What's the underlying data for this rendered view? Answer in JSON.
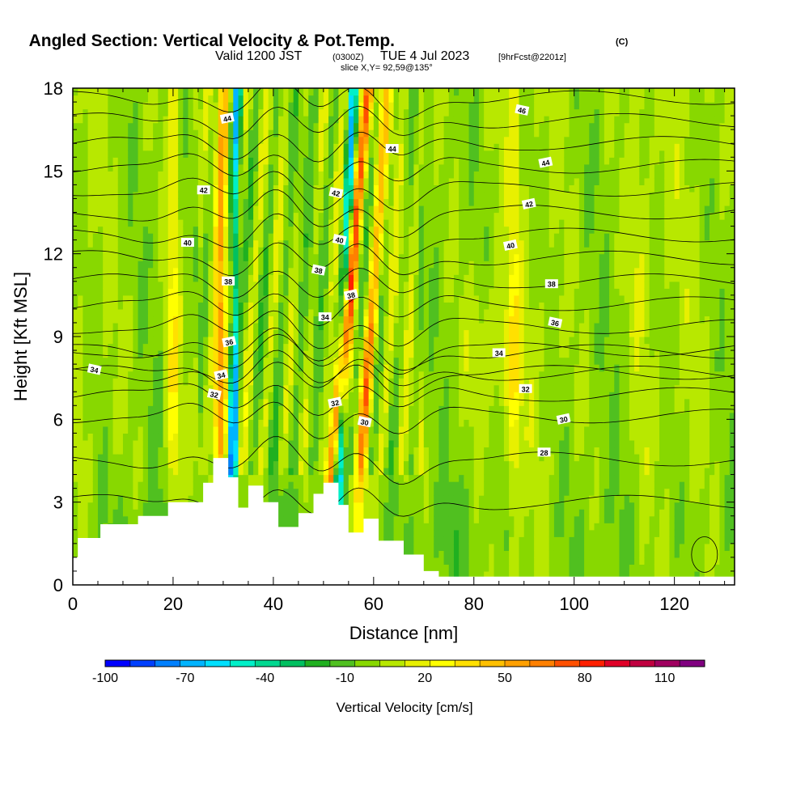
{
  "chart_data": {
    "type": "heatmap",
    "title": {
      "main": "Angled Section: Vertical Velocity & Pot.Temp.",
      "unit": "(C)",
      "valid_a": "Valid 1200 JST",
      "valid_b": "(0300Z)",
      "valid_c": "TUE 4 Jul 2023",
      "valid_d": "[9hrFcst@2201z]",
      "slice": "slice X,Y= 92,59@135°"
    },
    "xlabel": "Distance [nm]",
    "ylabel": "Height [Kft MSL]",
    "xlim": [
      0,
      132
    ],
    "ylim": [
      0,
      18
    ],
    "x_ticks": [
      "0",
      "20",
      "40",
      "60",
      "80",
      "100",
      "120"
    ],
    "y_ticks": [
      "0",
      "3",
      "6",
      "9",
      "12",
      "15",
      "18"
    ],
    "colorbar": {
      "label": "Vertical Velocity [cm/s]",
      "min": -100,
      "max": 125,
      "step": 10,
      "tick_labels": [
        "-100",
        "-70",
        "-40",
        "-10",
        "20",
        "50",
        "80",
        "110"
      ],
      "colors": [
        "#0000ff",
        "#0040ff",
        "#0080ff",
        "#00b4ff",
        "#00e0ff",
        "#00f0c8",
        "#00d890",
        "#00c060",
        "#20b020",
        "#50c020",
        "#88d800",
        "#b8e800",
        "#e8f000",
        "#ffff00",
        "#ffe000",
        "#ffc000",
        "#ffa000",
        "#ff8000",
        "#ff5000",
        "#ff2000",
        "#e00028",
        "#c00040",
        "#a00060",
        "#800080"
      ]
    },
    "updraft_columns": [
      {
        "x_bottom": 29,
        "x_top": 30,
        "peak": 70
      },
      {
        "x_bottom": 51,
        "x_top": 59,
        "peak": 110
      },
      {
        "x_bottom": 57,
        "x_top": 63,
        "peak": 55
      },
      {
        "x_bottom": 20,
        "x_top": 20,
        "peak": 35
      },
      {
        "x_bottom": 88,
        "x_top": 88,
        "peak": 25
      }
    ],
    "downdraft_columns": [
      {
        "x_bottom": 31,
        "x_top": 32,
        "peak": -95
      },
      {
        "x_bottom": 52,
        "x_top": 55,
        "peak": -90
      }
    ],
    "terrain": [
      [
        0,
        1
      ],
      [
        1,
        1
      ],
      [
        1,
        1.7
      ],
      [
        5.5,
        1.7
      ],
      [
        5.5,
        2.2
      ],
      [
        13,
        2.2
      ],
      [
        13,
        2.5
      ],
      [
        19,
        2.5
      ],
      [
        19,
        3
      ],
      [
        26,
        3
      ],
      [
        26,
        3.7
      ],
      [
        28,
        3.7
      ],
      [
        28,
        4.6
      ],
      [
        31,
        4.6
      ],
      [
        31,
        3.9
      ],
      [
        33,
        3.9
      ],
      [
        33,
        2.8
      ],
      [
        35,
        2.8
      ],
      [
        35,
        3.6
      ],
      [
        38,
        3.6
      ],
      [
        38,
        3
      ],
      [
        41,
        3
      ],
      [
        41,
        2.1
      ],
      [
        45,
        2.1
      ],
      [
        45,
        2.6
      ],
      [
        48,
        2.6
      ],
      [
        48,
        3.3
      ],
      [
        50,
        3.3
      ],
      [
        50,
        3.7
      ],
      [
        53,
        3.7
      ],
      [
        53,
        2.9
      ],
      [
        55,
        2.9
      ],
      [
        55,
        1.9
      ],
      [
        58,
        1.9
      ],
      [
        58,
        2.4
      ],
      [
        61,
        2.4
      ],
      [
        61,
        1.6
      ],
      [
        66,
        1.6
      ],
      [
        66,
        1.1
      ],
      [
        70,
        1.1
      ],
      [
        70,
        0.5
      ],
      [
        73,
        0.5
      ],
      [
        73,
        0.3
      ],
      [
        132,
        0.3
      ]
    ],
    "contour_labels": [
      {
        "text": "44",
        "x": 30.8,
        "y": 16.9
      },
      {
        "text": "44",
        "x": 63.7,
        "y": 15.8
      },
      {
        "text": "46",
        "x": 89.6,
        "y": 17.2
      },
      {
        "text": "44",
        "x": 94.3,
        "y": 15.3
      },
      {
        "text": "42",
        "x": 26.1,
        "y": 14.3
      },
      {
        "text": "42",
        "x": 52.5,
        "y": 14.2
      },
      {
        "text": "42",
        "x": 91.0,
        "y": 13.8
      },
      {
        "text": "40",
        "x": 22.9,
        "y": 12.4
      },
      {
        "text": "40",
        "x": 53.2,
        "y": 12.5
      },
      {
        "text": "40",
        "x": 87.3,
        "y": 12.3
      },
      {
        "text": "38",
        "x": 31.0,
        "y": 11.0
      },
      {
        "text": "38",
        "x": 49.0,
        "y": 11.4
      },
      {
        "text": "38",
        "x": 55.5,
        "y": 10.5
      },
      {
        "text": "38",
        "x": 95.5,
        "y": 10.9
      },
      {
        "text": "34",
        "x": 4.3,
        "y": 7.8
      },
      {
        "text": "36",
        "x": 31.2,
        "y": 8.8
      },
      {
        "text": "34",
        "x": 50.3,
        "y": 9.7
      },
      {
        "text": "36",
        "x": 96.2,
        "y": 9.5
      },
      {
        "text": "34",
        "x": 29.6,
        "y": 7.6
      },
      {
        "text": "34",
        "x": 85.0,
        "y": 8.4
      },
      {
        "text": "32",
        "x": 28.2,
        "y": 6.9
      },
      {
        "text": "32",
        "x": 52.3,
        "y": 6.6
      },
      {
        "text": "32",
        "x": 90.3,
        "y": 7.1
      },
      {
        "text": "30",
        "x": 58.2,
        "y": 5.9
      },
      {
        "text": "30",
        "x": 97.9,
        "y": 6.0
      },
      {
        "text": "28",
        "x": 94.0,
        "y": 4.8
      }
    ],
    "isentropes": [
      26,
      28,
      30,
      31,
      32,
      33,
      34,
      35,
      36,
      37,
      38,
      39,
      40,
      41,
      42,
      43,
      44,
      45,
      46
    ]
  }
}
